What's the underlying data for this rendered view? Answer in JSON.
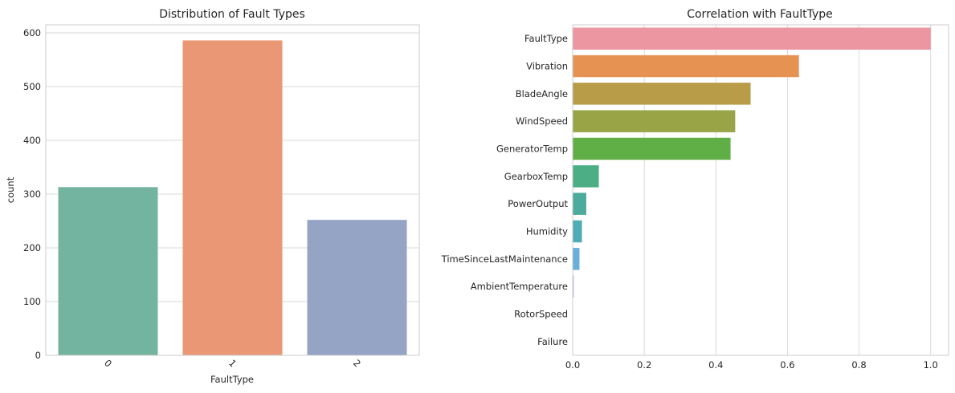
{
  "chart_data": [
    {
      "type": "bar",
      "title": "Distribution of Fault Types",
      "xlabel": "FaultType",
      "ylabel": "count",
      "categories": [
        "0",
        "1",
        "2"
      ],
      "values": [
        313,
        586,
        252
      ],
      "ylim": [
        0,
        615
      ],
      "yticks": [
        0,
        100,
        200,
        300,
        400,
        500,
        600
      ],
      "colors": [
        "#73b4a0",
        "#e99774",
        "#95a4c4"
      ],
      "xtick_rotation_deg": 45,
      "grid": "horizontal"
    },
    {
      "type": "bar",
      "orientation": "horizontal",
      "title": "Correlation with FaultType",
      "xlabel": "",
      "ylabel": "",
      "categories": [
        "FaultType",
        "Vibration",
        "BladeAngle",
        "WindSpeed",
        "GeneratorTemp",
        "GearboxTemp",
        "PowerOutput",
        "Humidity",
        "TimeSinceLastMaintenance",
        "AmbientTemperature",
        "RotorSpeed",
        "Failure"
      ],
      "values": [
        1.0,
        0.632,
        0.497,
        0.454,
        0.441,
        0.073,
        0.038,
        0.026,
        0.019,
        0.003,
        0.0,
        0.0
      ],
      "xlim": [
        0,
        1.05
      ],
      "xticks": [
        "0.0",
        "0.2",
        "0.4",
        "0.6",
        "0.8",
        "1.0"
      ],
      "colors": [
        "#ec96a2",
        "#e69253",
        "#b99c48",
        "#99a446",
        "#60af46",
        "#4bae84",
        "#4cab9c",
        "#4fabb6",
        "#6aaedc",
        "#b8a8e5",
        "#e29ad6",
        "#ed94c0"
      ],
      "grid": "vertical"
    }
  ]
}
